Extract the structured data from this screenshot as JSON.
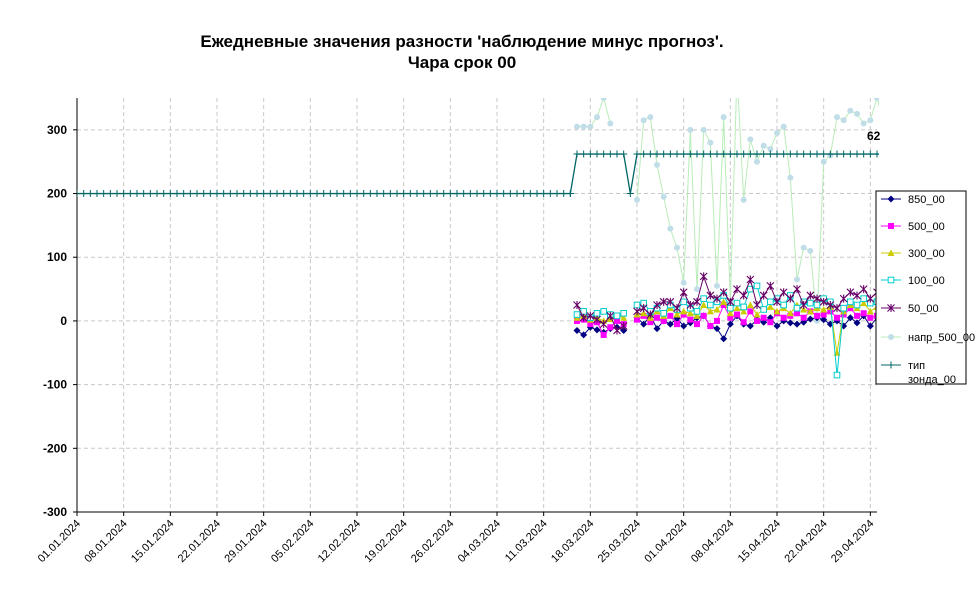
{
  "chart_data": {
    "type": "line",
    "title_lines": [
      "Ежедневные значения разности 'наблюдение минус прогноз'.",
      "Чара     срок 00"
    ],
    "x_start": "01.01.2024",
    "x_end": "30.04.2024",
    "ylim": [
      -300,
      350
    ],
    "yticks": [
      -300,
      -200,
      -100,
      0,
      100,
      200,
      300
    ],
    "grid": true,
    "legend_position": "right",
    "xtick_labels": [
      "01.01.2024",
      "08.01.2024",
      "15.01.2024",
      "22.01.2024",
      "29.01.2024",
      "05.02.2024",
      "12.02.2024",
      "19.02.2024",
      "26.02.2024",
      "04.03.2024",
      "11.03.2024",
      "18.03.2024",
      "25.03.2024",
      "01.04.2024",
      "08.04.2024",
      "15.04.2024",
      "22.04.2024",
      "29.04.2024"
    ],
    "annotation": {
      "text": "62",
      "date": "30.04.2024",
      "y": 290
    },
    "series": [
      {
        "name": "850_00",
        "color": "#000080",
        "marker": "diamond",
        "start": "16.03.2024",
        "values": [
          -15,
          -22,
          -10,
          -14,
          -18,
          -12,
          -10,
          -15,
          null,
          5,
          -5,
          8,
          -12,
          0,
          -5,
          4,
          -8,
          -3,
          5,
          8,
          -8,
          -12,
          -28,
          -5,
          8,
          -5,
          -8,
          2,
          -2,
          5,
          -8,
          0,
          -3,
          -5,
          -2,
          3,
          5,
          2,
          -5,
          0,
          -8,
          5,
          -3,
          8,
          -8,
          5,
          -8
        ]
      },
      {
        "name": "500_00",
        "color": "#FF00FF",
        "marker": "square",
        "start": "16.03.2024",
        "values": [
          0,
          2,
          -5,
          -2,
          -22,
          -10,
          0,
          -5,
          null,
          2,
          8,
          -2,
          5,
          0,
          8,
          -5,
          10,
          2,
          -5,
          8,
          -8,
          0,
          25,
          5,
          10,
          -2,
          15,
          0,
          5,
          -2,
          12,
          5,
          8,
          12,
          5,
          15,
          8,
          10,
          15,
          5,
          10,
          20,
          8,
          12,
          5,
          8,
          15
        ]
      },
      {
        "name": "300_00",
        "color": "#CCCC00",
        "marker": "triangle",
        "start": "16.03.2024",
        "values": [
          5,
          8,
          2,
          5,
          0,
          3,
          8,
          5,
          null,
          10,
          12,
          5,
          15,
          8,
          20,
          10,
          15,
          12,
          8,
          25,
          15,
          18,
          30,
          12,
          20,
          15,
          25,
          10,
          18,
          22,
          15,
          20,
          12,
          25,
          18,
          15,
          20,
          18,
          22,
          -50,
          15,
          25,
          20,
          28,
          15,
          22,
          25
        ]
      },
      {
        "name": "100_00",
        "color": "#00CCCC",
        "marker": "circle",
        "start": "16.03.2024",
        "values": [
          10,
          15,
          5,
          12,
          15,
          10,
          8,
          12,
          null,
          25,
          28,
          15,
          20,
          12,
          25,
          18,
          30,
          20,
          15,
          35,
          25,
          30,
          40,
          20,
          28,
          22,
          50,
          55,
          18,
          30,
          35,
          25,
          40,
          20,
          30,
          28,
          25,
          35,
          30,
          -85,
          20,
          30,
          25,
          35,
          28,
          30,
          35
        ]
      },
      {
        "name": "50_00",
        "color": "#660066",
        "marker": "star",
        "start": "16.03.2024",
        "values": [
          25,
          5,
          8,
          2,
          -5,
          8,
          -15,
          -8,
          null,
          15,
          20,
          10,
          25,
          30,
          30,
          20,
          45,
          25,
          30,
          70,
          40,
          35,
          45,
          30,
          50,
          40,
          65,
          25,
          40,
          55,
          30,
          45,
          35,
          50,
          25,
          40,
          35,
          30,
          25,
          20,
          35,
          45,
          40,
          50,
          35,
          45,
          60
        ]
      },
      {
        "name": "напр_500_00",
        "color": "#C0DDE8",
        "marker": "dot",
        "start": "16.03.2024",
        "values": [
          305,
          305,
          305,
          320,
          350,
          310,
          null,
          null,
          null,
          190,
          315,
          320,
          245,
          195,
          145,
          115,
          60,
          300,
          50,
          300,
          280,
          55,
          320,
          30,
          390,
          190,
          285,
          250,
          275,
          270,
          295,
          305,
          225,
          65,
          115,
          110,
          0,
          250,
          260,
          320,
          315,
          330,
          325,
          310,
          315,
          350,
          310
        ]
      },
      {
        "name": "тип зонда_00",
        "legend_lines": [
          "тип",
          "зонда_00"
        ],
        "color": "#006666",
        "marker": "plus",
        "segments": [
          {
            "start": "01.01.2024",
            "values": [
              200,
              200,
              200,
              200,
              200,
              200,
              200,
              200,
              200,
              200,
              200,
              200,
              200,
              200,
              200,
              200,
              200,
              200,
              200,
              200,
              200,
              200,
              200,
              200,
              200,
              200,
              200,
              200,
              200,
              200,
              200,
              200,
              200,
              200,
              200,
              200,
              200,
              200,
              200,
              200,
              200,
              200,
              200,
              200,
              200,
              200,
              200,
              200,
              200,
              200,
              200,
              200,
              200,
              200,
              200,
              200,
              200,
              200,
              200,
              200,
              200,
              200,
              200,
              200,
              200,
              200,
              200,
              200,
              200,
              200,
              200,
              200,
              200,
              200,
              200
            ]
          },
          {
            "start": "15.03.2024",
            "values": [
              200,
              262,
              262,
              262,
              262,
              262,
              262,
              262,
              262,
              200,
              262,
              262,
              262,
              262,
              262,
              262,
              262,
              262,
              262,
              262,
              262,
              262,
              262,
              262,
              262,
              262,
              262,
              262,
              262,
              262,
              262,
              262,
              262,
              262,
              262,
              262,
              262,
              262,
              262,
              262,
              262,
              262,
              262,
              262,
              262,
              262,
              262,
              262
            ]
          }
        ]
      }
    ]
  }
}
